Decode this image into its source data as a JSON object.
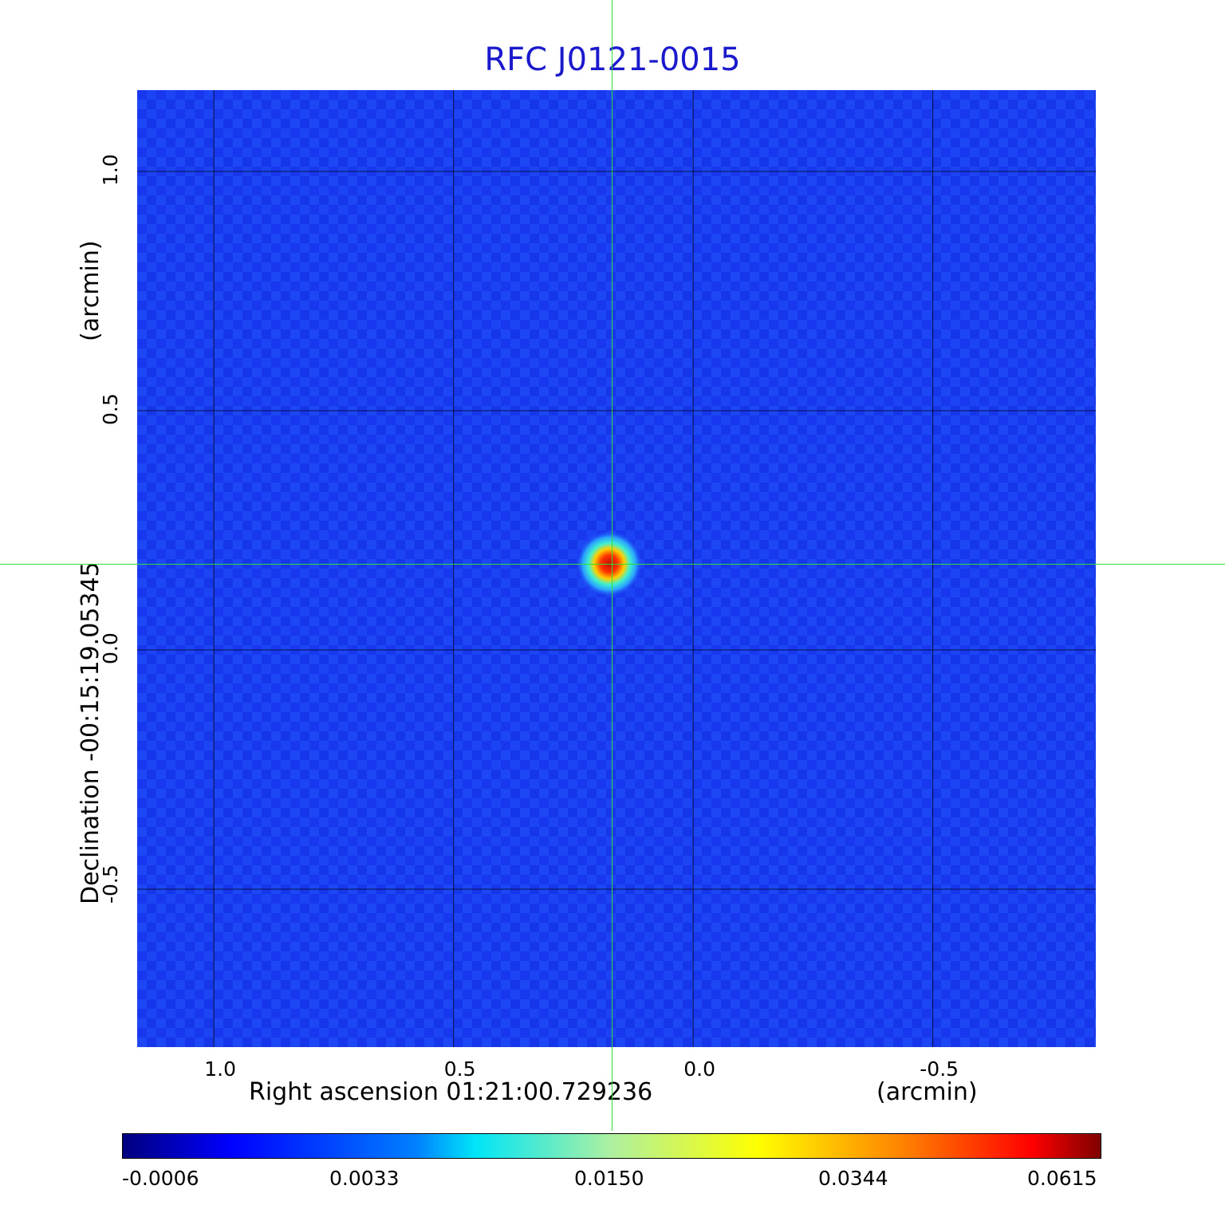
{
  "chart_data": {
    "type": "heatmap",
    "title": "RFC J0121-0015",
    "xlabel": "Right ascension  01:21:00.729236",
    "xunit": "(arcmin)",
    "ylabel": "Declination  -00:15:19.05345",
    "yunit": "(arcmin)",
    "x_ticks": [
      "1.0",
      "0.5",
      "0.0",
      "-0.5"
    ],
    "y_ticks": [
      "1.0",
      "0.5",
      "0.0",
      "-0.5"
    ],
    "xlim": [
      1.16,
      -0.84
    ],
    "ylim": [
      -0.83,
      1.17
    ],
    "grid": true,
    "peak": {
      "x": 0.175,
      "y": 0.18,
      "value": 0.0615
    },
    "crosshair": {
      "x": 0.17,
      "y": 0.18
    },
    "colormap": "jet",
    "colorbar_ticks": [
      "-0.0006",
      "0.0033",
      "0.0150",
      "0.0344",
      "0.0615"
    ],
    "background_color": "#1a3bf2",
    "crosshair_color": "#33dd33"
  }
}
